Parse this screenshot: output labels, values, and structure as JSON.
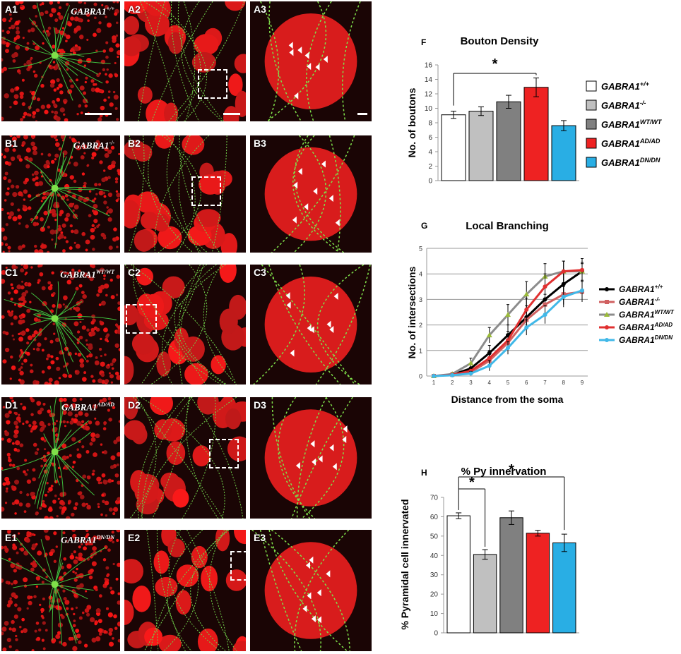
{
  "panels": {
    "row_labels": [
      [
        "A1",
        "A2",
        "A3"
      ],
      [
        "B1",
        "B2",
        "B3"
      ],
      [
        "C1",
        "C2",
        "C3"
      ],
      [
        "D1",
        "D2",
        "D3"
      ],
      [
        "E1",
        "E2",
        "E3"
      ]
    ],
    "genotypes": [
      {
        "base": "GABRA1",
        "sup": "+/+"
      },
      {
        "base": "GABRA1",
        "sup": "-/-"
      },
      {
        "base": "GABRA1",
        "sup": "WT/WT"
      },
      {
        "base": "GABRA1",
        "sup": "AD/AD"
      },
      {
        "base": "GABRA1",
        "sup": "DN/DN"
      }
    ]
  },
  "colors": {
    "wt": "#ffffff",
    "ko": "#c0c0c0",
    "wtwt": "#808080",
    "adad": "#ee2222",
    "dndn": "#29aee4",
    "line_wt": "#000000",
    "line_ko": "#d06060",
    "line_wtwt": "#8c8c8c",
    "line_adad": "#e03030",
    "line_dndn": "#40b8e8",
    "marker_wtwt": "#9bbb3a"
  },
  "legend_fh": [
    {
      "base": "GABRA1",
      "sup": "+/+"
    },
    {
      "base": "GABRA1",
      "sup": "-/-"
    },
    {
      "base": "GABRA1",
      "sup": "WT/WT"
    },
    {
      "base": "GABRA1",
      "sup": "AD/AD"
    },
    {
      "base": "GABRA1",
      "sup": "DN/DN"
    }
  ],
  "chart_data": [
    {
      "panel": "F",
      "type": "bar",
      "title": "Bouton Density",
      "ylabel": "No. of boutons",
      "ylim": [
        0,
        16
      ],
      "yticks": [
        0,
        2,
        4,
        6,
        8,
        10,
        12,
        14,
        16
      ],
      "values": [
        9.1,
        9.6,
        10.9,
        12.9,
        7.6
      ],
      "errors": [
        0.5,
        0.6,
        0.9,
        1.3,
        0.7
      ],
      "significance": [
        {
          "from": 0,
          "to": 3,
          "label": "*"
        }
      ]
    },
    {
      "panel": "G",
      "type": "line",
      "title": "Local Branching",
      "xlabel": "Distance from the soma",
      "ylabel": "No. of intersections",
      "x": [
        1,
        2,
        3,
        4,
        5,
        6,
        7,
        8,
        9
      ],
      "ylim": [
        0,
        5
      ],
      "yticks": [
        0,
        1,
        2,
        3,
        4,
        5
      ],
      "series": [
        {
          "name": "GABRA1+/+",
          "values": [
            0,
            0.05,
            0.3,
            0.9,
            1.6,
            2.3,
            3.0,
            3.6,
            4.1
          ],
          "errors": [
            0,
            0.05,
            0.15,
            0.3,
            0.4,
            0.45,
            0.5,
            0.5,
            0.5
          ]
        },
        {
          "name": "GABRA1-/-",
          "values": [
            0,
            0.05,
            0.15,
            0.6,
            1.3,
            2.2,
            2.8,
            3.2,
            3.3
          ],
          "errors": [
            0,
            0.05,
            0.1,
            0.25,
            0.35,
            0.4,
            0.4,
            0.4,
            0.4
          ]
        },
        {
          "name": "GABRA1WT/WT",
          "values": [
            0,
            0.08,
            0.5,
            1.6,
            2.4,
            3.2,
            3.9,
            4.1,
            4.1
          ],
          "errors": [
            0,
            0.05,
            0.2,
            0.3,
            0.4,
            0.5,
            0.5,
            0.4,
            0.3
          ]
        },
        {
          "name": "GABRA1AD/AD",
          "values": [
            0,
            0.05,
            0.2,
            0.7,
            1.4,
            2.6,
            3.5,
            4.1,
            4.15
          ],
          "errors": [
            0,
            0.05,
            0.15,
            0.3,
            0.35,
            0.45,
            0.5,
            0.4,
            0.3
          ]
        },
        {
          "name": "GABRA1DN/DN",
          "values": [
            0,
            0.03,
            0.1,
            0.4,
            1.1,
            1.9,
            2.4,
            3.1,
            3.35
          ],
          "errors": [
            0,
            0.03,
            0.08,
            0.2,
            0.25,
            0.3,
            0.35,
            0.4,
            0.4
          ]
        }
      ]
    },
    {
      "panel": "H",
      "type": "bar",
      "title": "% Py innervation",
      "ylabel": "% Pyramidal cell innervated",
      "ylim": [
        0,
        70
      ],
      "yticks": [
        0,
        10,
        20,
        30,
        40,
        50,
        60,
        70
      ],
      "values": [
        60.5,
        40.5,
        59.5,
        51.5,
        46.5
      ],
      "errors": [
        1.5,
        2.5,
        3.5,
        1.5,
        4.5
      ],
      "significance": [
        {
          "from": 0,
          "to": 1,
          "label": "*"
        },
        {
          "from": 0,
          "to": 4,
          "label": "*"
        }
      ]
    }
  ]
}
